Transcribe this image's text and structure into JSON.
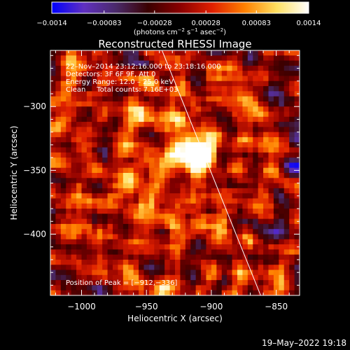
{
  "chart_data": {
    "type": "heatmap",
    "title": "Reconstructed RHESSI Image",
    "xlabel": "Heliocentric X (arcsec)",
    "ylabel": "Heliocentric Y (arcsec)",
    "xlim": [
      -1024,
      -832
    ],
    "ylim": [
      -448,
      -256
    ],
    "x_ticks": [
      -1000,
      -950,
      -900,
      -850
    ],
    "x_tick_labels": [
      "−1000",
      "−950",
      "−900",
      "−850"
    ],
    "y_ticks": [
      -300,
      -350,
      -400
    ],
    "y_tick_labels": [
      "−300",
      "−350",
      "−400"
    ],
    "pixel_size_arcsec": 4,
    "grid": false,
    "colorbar": {
      "range": [
        -0.0014,
        0.0014
      ],
      "ticks": [
        -0.0014,
        -0.00083,
        -0.00028,
        0.00028,
        0.00083,
        0.0014
      ],
      "tick_labels": [
        "−0.0014",
        "−0.00083",
        "−0.00028",
        "0.00028",
        "0.00083",
        "0.0014"
      ],
      "unit_prefix": "(photons cm",
      "unit_exp1": "−2",
      "unit_mid": " s",
      "unit_exp2": "−1",
      "unit_mid2": " asec",
      "unit_exp3": "−2",
      "unit_suffix": ")",
      "colors": [
        "#0000ff",
        "#6030c0",
        "#4a2a6a",
        "#3a0000",
        "#8a0000",
        "#e02000",
        "#ff8000",
        "#ffe060",
        "#ffffff"
      ]
    },
    "peak": {
      "x": -912,
      "y": -336,
      "value": 0.0014
    },
    "limb": [
      {
        "x": -938,
        "y": -256
      },
      {
        "x": -862,
        "y": -448
      }
    ],
    "annotations": [
      "22–Nov–2014 23:12:16.000 to 23:18:16.000",
      "Detectors: 3F 6F 9F, Att 0",
      "Energy Range: 12.0 – 25.0 keV",
      "Clean     Total counts: 7.16E+03"
    ],
    "peak_label": "Position of Peak = [−912,−336]"
  },
  "footer": {
    "timestamp": "19–May–2022 19:18"
  }
}
